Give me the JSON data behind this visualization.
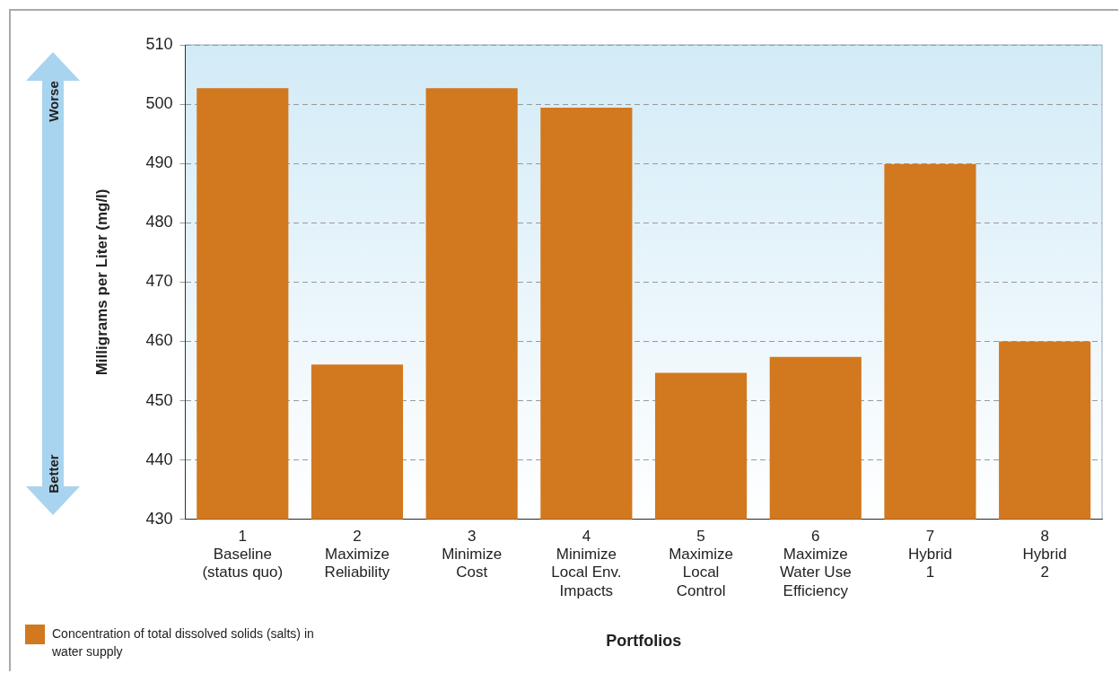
{
  "chart_data": {
    "type": "bar",
    "categories": [
      "1\nBaseline\n(status quo)",
      "2\nMaximize\nReliability",
      "3\nMinimize\nCost",
      "4\nMinimize\nLocal Env.\nImpacts",
      "5\nMaximize\nLocal\nControl",
      "6\nMaximize\nWater Use\nEfficiency",
      "7\nHybrid\n1",
      "8\nHybrid\n2"
    ],
    "series": [
      {
        "name": "Concentration of total dissolved solids (salts) in water supply",
        "color": "#d2781e",
        "values": [
          502.7,
          456.1,
          502.7,
          499.4,
          454.7,
          457.4,
          489.9,
          460.0
        ]
      }
    ],
    "xlabel": "Portfolios",
    "ylabel": "Milligrams per Liter (mg/l)",
    "ylim": [
      430,
      510
    ],
    "yticks": [
      430,
      440,
      450,
      460,
      470,
      480,
      490,
      500,
      510
    ],
    "grid": "y",
    "legend": "bottom left",
    "annotations": [
      "Worse",
      "Better"
    ]
  }
}
